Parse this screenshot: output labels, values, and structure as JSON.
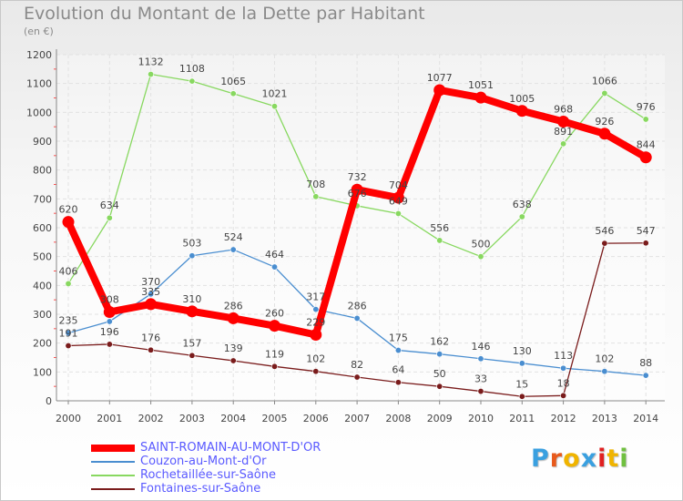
{
  "chart_data": {
    "type": "line",
    "title": "Evolution du Montant de la Dette par Habitant",
    "unit_label": "(en €)",
    "xlabel": "",
    "ylabel": "",
    "ylim": [
      0,
      1200
    ],
    "yticks": [
      0,
      100,
      200,
      300,
      400,
      500,
      600,
      700,
      800,
      900,
      1000,
      1100,
      1200
    ],
    "categories": [
      "2000",
      "2001",
      "2002",
      "2003",
      "2004",
      "2005",
      "2006",
      "2007",
      "2008",
      "2009",
      "2010",
      "2011",
      "2012",
      "2013",
      "2014"
    ],
    "grid": true,
    "legend_position": "bottom-left",
    "series": [
      {
        "name": "SAINT-ROMAIN-AU-MONT-D'OR",
        "color": "#ff0000",
        "emphasis": true,
        "values": [
          620,
          308,
          335,
          310,
          286,
          260,
          229,
          732,
          704,
          1077,
          1051,
          1005,
          968,
          926,
          844
        ],
        "labels": [
          "620",
          "308",
          "335",
          "310",
          "286",
          "260",
          "229",
          "732",
          "704",
          "1077",
          "1051",
          "1005",
          "968",
          "926",
          "844"
        ]
      },
      {
        "name": "Couzon-au-Mont-d'Or",
        "color": "#4a8ed0",
        "values": [
          235,
          275,
          370,
          503,
          524,
          464,
          317,
          286,
          175,
          162,
          146,
          130,
          113,
          102,
          88
        ],
        "labels": [
          "235",
          "",
          "370",
          "503",
          "524",
          "464",
          "317",
          "286",
          "175",
          "162",
          "146",
          "130",
          "113",
          "102",
          "88"
        ]
      },
      {
        "name": "Rochetaillée-sur-Saône",
        "color": "#88d860",
        "values": [
          406,
          634,
          1132,
          1108,
          1065,
          1021,
          708,
          676,
          649,
          556,
          500,
          638,
          891,
          1066,
          976
        ],
        "labels": [
          "406",
          "634",
          "1132",
          "1108",
          "1065",
          "1021",
          "708",
          "676",
          "649",
          "556",
          "500",
          "638",
          "891",
          "1066",
          "976"
        ]
      },
      {
        "name": "Fontaines-sur-Saône",
        "color": "#7a1c1c",
        "values": [
          191,
          196,
          176,
          157,
          139,
          119,
          102,
          82,
          64,
          50,
          33,
          15,
          18,
          546,
          547
        ],
        "labels": [
          "191",
          "196",
          "176",
          "157",
          "139",
          "119",
          "102",
          "82",
          "64",
          "50",
          "33",
          "15",
          "18",
          "546",
          "547"
        ]
      }
    ]
  },
  "legend": {
    "items": [
      {
        "label": "SAINT-ROMAIN-AU-MONT-D'OR"
      },
      {
        "label": "Couzon-au-Mont-d'Or"
      },
      {
        "label": "Rochetaillée-sur-Saône"
      },
      {
        "label": "Fontaines-sur-Saône"
      }
    ]
  },
  "logo": {
    "text": "Proxiti",
    "colors": [
      "#3aa0e0",
      "#e85a1c",
      "#f0b400",
      "#3aa0e0",
      "#e02020",
      "#f0b400",
      "#70c040"
    ]
  }
}
